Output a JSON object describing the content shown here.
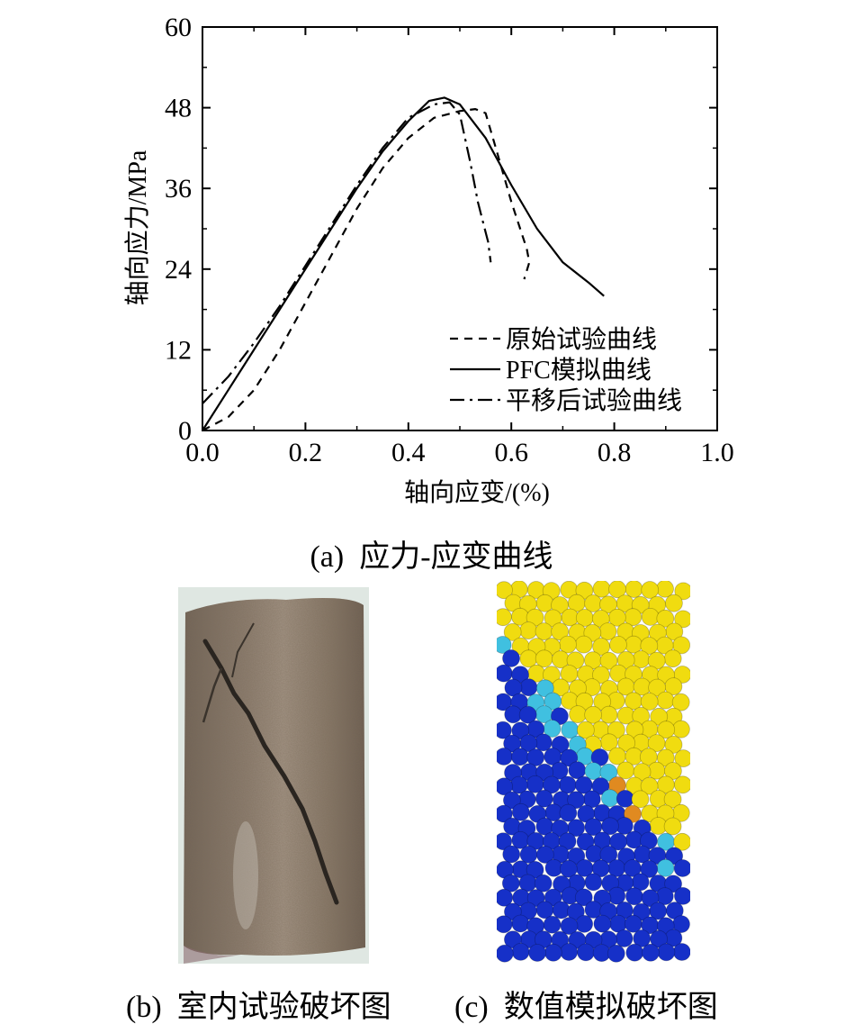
{
  "chart_data": {
    "type": "line",
    "xlabel": "轴向应变/(%)",
    "ylabel": "轴向应力/MPa",
    "xlim": [
      0.0,
      1.0
    ],
    "ylim": [
      0,
      60
    ],
    "x_ticks": [
      "0.0",
      "0.2",
      "0.4",
      "0.6",
      "0.8",
      "1.0"
    ],
    "y_ticks": [
      "0",
      "12",
      "24",
      "36",
      "48",
      "60"
    ],
    "grid": false,
    "legend_position": "bottom-right",
    "series": [
      {
        "name": "原始试验曲线",
        "style": "dashed",
        "color": "#000000",
        "x": [
          0.0,
          0.05,
          0.1,
          0.15,
          0.2,
          0.25,
          0.3,
          0.35,
          0.4,
          0.45,
          0.5,
          0.53,
          0.55,
          0.57,
          0.6,
          0.63,
          0.635,
          0.625
        ],
        "y": [
          0.0,
          2.0,
          6.0,
          12.0,
          19.0,
          26.0,
          33.0,
          39.0,
          43.5,
          46.5,
          47.5,
          47.8,
          47.2,
          42.0,
          34.0,
          27.0,
          25.0,
          22.5
        ]
      },
      {
        "name": "PFC模拟曲线",
        "style": "solid",
        "color": "#000000",
        "x": [
          0.0,
          0.05,
          0.1,
          0.15,
          0.2,
          0.25,
          0.3,
          0.35,
          0.4,
          0.44,
          0.47,
          0.5,
          0.55,
          0.6,
          0.65,
          0.7,
          0.75,
          0.78
        ],
        "y": [
          0.0,
          6.0,
          12.0,
          18.0,
          24.0,
          30.0,
          36.0,
          41.5,
          46.0,
          49.0,
          49.5,
          48.5,
          43.5,
          36.5,
          30.0,
          25.0,
          22.0,
          20.0
        ]
      },
      {
        "name": "平移后试验曲线",
        "style": "dashdot",
        "color": "#000000",
        "x": [
          0.0,
          0.05,
          0.1,
          0.15,
          0.2,
          0.25,
          0.3,
          0.35,
          0.4,
          0.45,
          0.48,
          0.5,
          0.52,
          0.53,
          0.535,
          0.545,
          0.555,
          0.56
        ],
        "y": [
          4.0,
          8.0,
          13.0,
          18.5,
          24.5,
          30.5,
          36.5,
          42.0,
          46.5,
          48.5,
          48.8,
          47.0,
          40.0,
          36.0,
          34.0,
          31.0,
          28.0,
          25.0
        ]
      }
    ]
  },
  "captions": {
    "a": "(a)  应力-应变曲线",
    "b": "(b)  室内试验破坏图",
    "c": "(c)  数值模拟破坏图"
  },
  "colors": {
    "photo_rock": "#8a7a6c",
    "photo_background": "#d9e3dc",
    "sim_yellow": "#f0dc10",
    "sim_blue": "#1630c8",
    "sim_cyan": "#40c0e0",
    "sim_orange": "#e08a20"
  }
}
